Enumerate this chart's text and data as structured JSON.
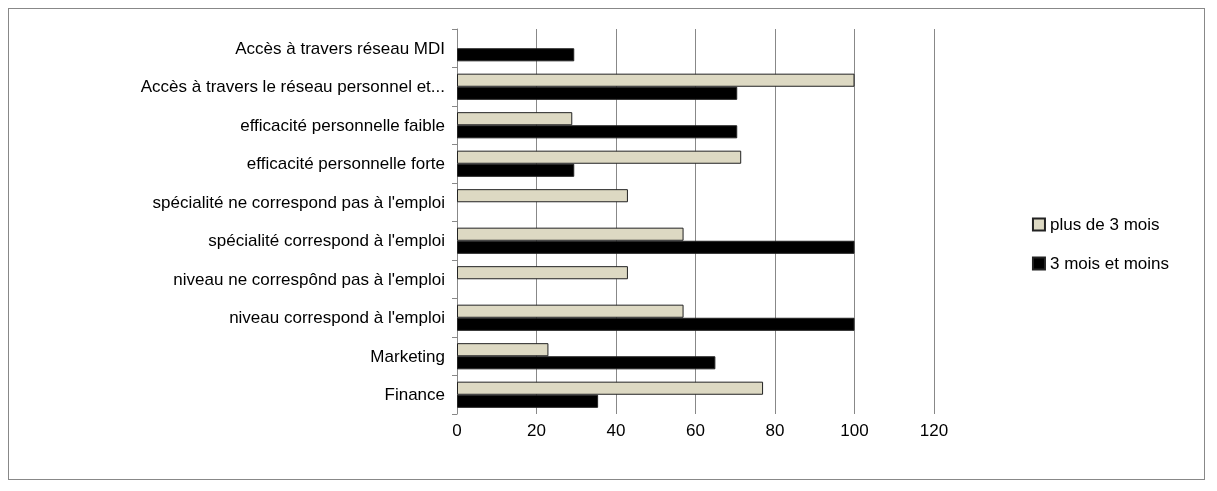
{
  "chart_data": {
    "type": "bar",
    "orientation": "horizontal",
    "categories": [
      "Accès à travers réseau MDI",
      "Accès à travers le réseau personnel et...",
      "efficacité personnelle faible",
      "efficacité personnelle forte",
      "spécialité ne correspond pas à l'emploi",
      "spécialité correspond à l'emploi",
      "niveau ne correspônd pas à l'emploi",
      "niveau correspond à l'emploi",
      "Marketing",
      "Finance"
    ],
    "series": [
      {
        "name": "plus de 3 mois",
        "color": "#ddd9c3",
        "values": [
          null,
          100,
          29,
          71.5,
          43,
          57,
          43,
          57,
          23,
          77
        ]
      },
      {
        "name": "3 mois et moins",
        "color": "#000000",
        "values": [
          29.5,
          70.5,
          70.5,
          29.5,
          null,
          100,
          null,
          100,
          65,
          35.5
        ]
      }
    ],
    "xlim": [
      0,
      120
    ],
    "xticks": [
      0,
      20,
      40,
      60,
      80,
      100,
      120
    ],
    "grid": "x",
    "legend": "right"
  }
}
